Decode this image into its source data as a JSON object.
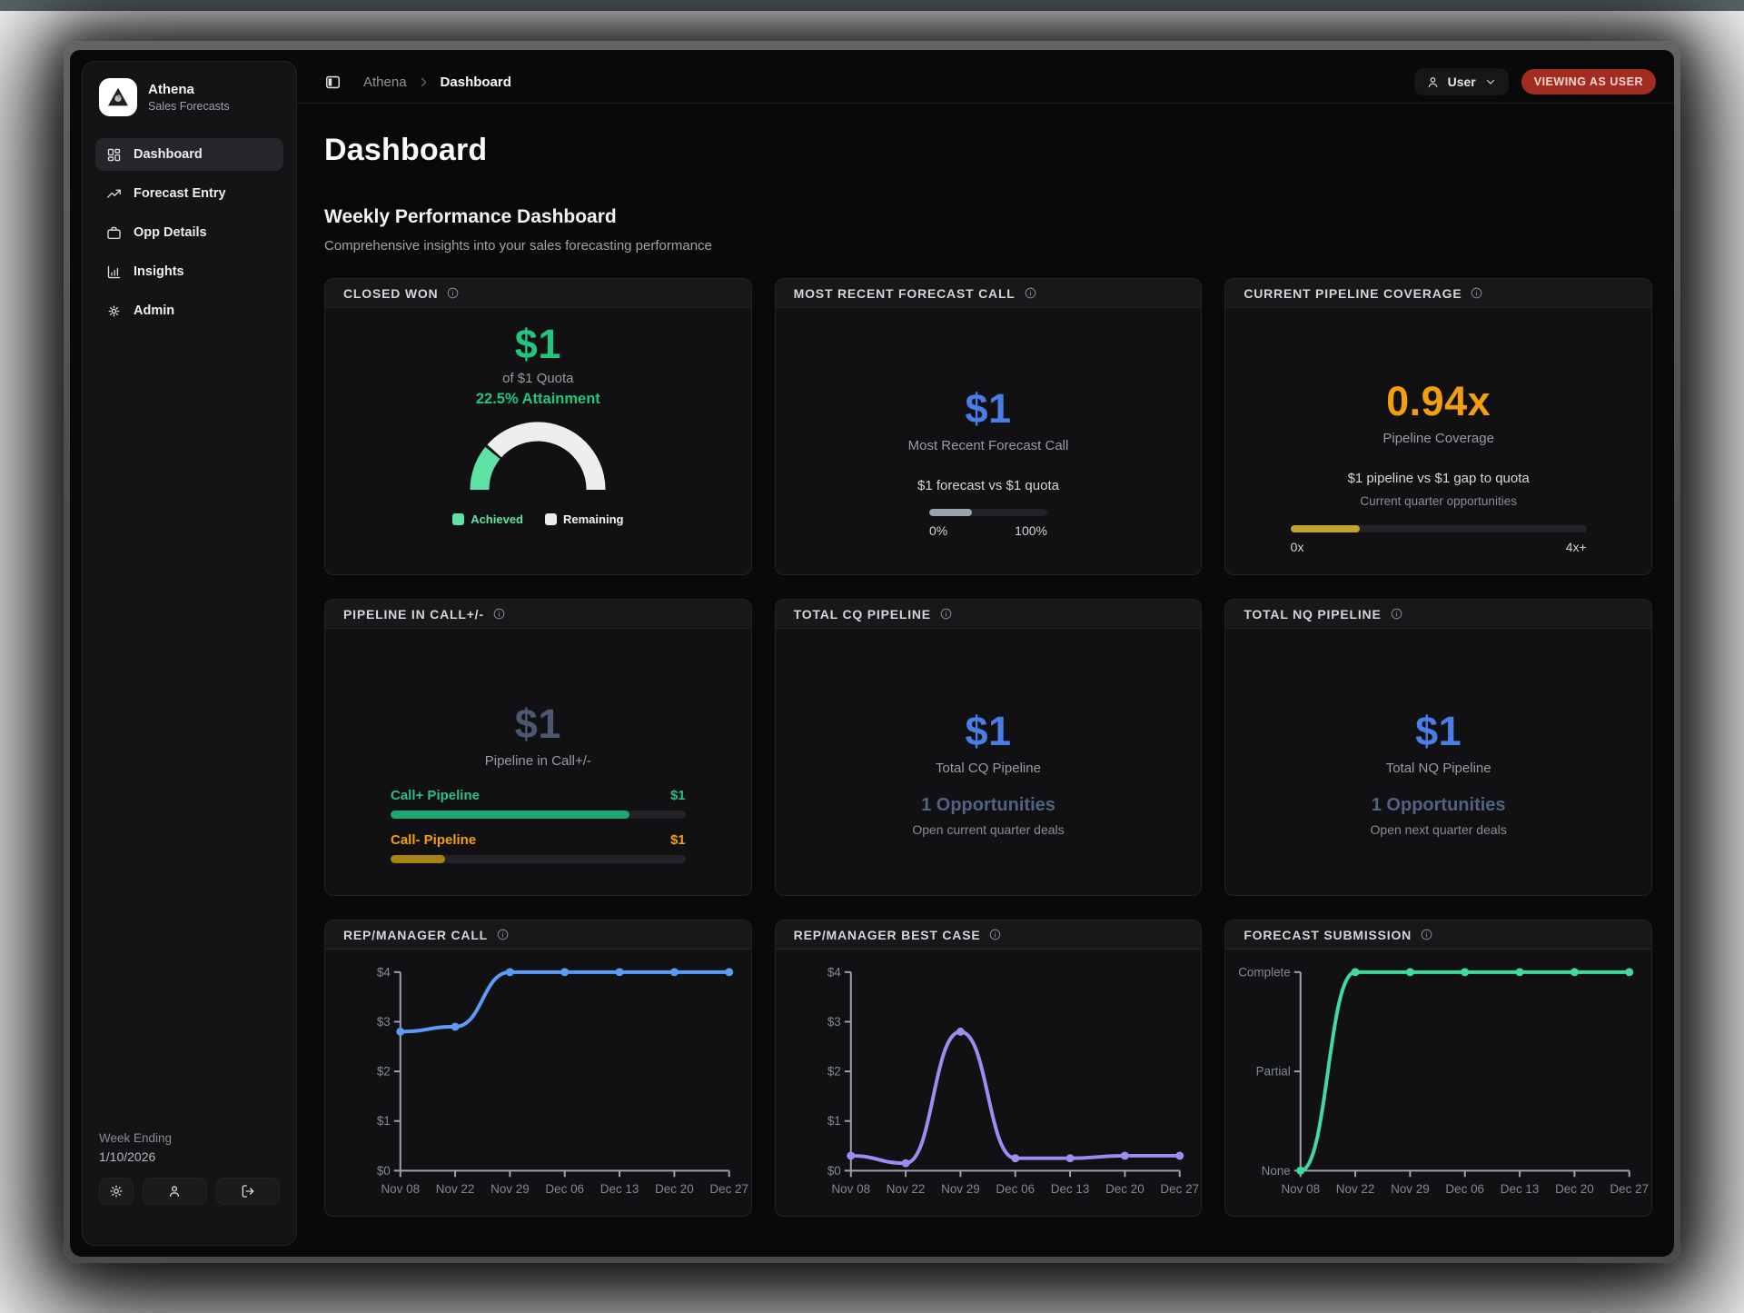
{
  "colors": {
    "green": "#22c57e",
    "mint": "#5fe3a4",
    "blue": "#4b7de6",
    "orange": "#f59e0b",
    "gold": "#c4a135",
    "gold_dark": "#a8830f",
    "teal_green": "#1ba873",
    "teal_text": "#2dbd87",
    "slate": "#4b5870",
    "slate_light": "#516283",
    "gray_fill": "#9ca3af",
    "badge_red": "#a32c20",
    "chart_blue": "#5b9cf6",
    "chart_purple": "#9d8cf2",
    "chart_mint": "#42d9a0"
  },
  "sidebar": {
    "app_name": "Athena",
    "app_subtitle": "Sales Forecasts",
    "nav": [
      {
        "label": "Dashboard",
        "icon": "dashboard-grid",
        "active": true
      },
      {
        "label": "Forecast Entry",
        "icon": "trending-up",
        "active": false
      },
      {
        "label": "Opp Details",
        "icon": "briefcase",
        "active": false
      },
      {
        "label": "Insights",
        "icon": "bar-chart",
        "active": false
      },
      {
        "label": "Admin",
        "icon": "gear",
        "active": false
      }
    ],
    "footer": {
      "week_ending_label": "Week Ending",
      "week_ending_date": "1/10/2026"
    }
  },
  "topbar": {
    "breadcrumb_app": "Athena",
    "breadcrumb_page": "Dashboard",
    "user_label": "User",
    "viewing_badge": "VIEWING AS USER"
  },
  "page": {
    "title": "Dashboard",
    "section_title": "Weekly Performance Dashboard",
    "section_subtitle": "Comprehensive insights into your sales forecasting performance"
  },
  "cards": {
    "closed_won": {
      "title": "CLOSED WON",
      "value": "$1",
      "quota_line": "of $1 Quota",
      "attainment": "22.5% Attainment",
      "legend_achieved": "Achieved",
      "legend_remaining": "Remaining"
    },
    "forecast_call": {
      "title": "MOST RECENT FORECAST CALL",
      "value": "$1",
      "label": "Most Recent Forecast Call",
      "compare": "$1 forecast vs $1 quota",
      "bar_pct": 36,
      "min_label": "0%",
      "max_label": "100%"
    },
    "coverage": {
      "title": "CURRENT PIPELINE COVERAGE",
      "value": "0.94x",
      "label": "Pipeline Coverage",
      "compare": "$1 pipeline vs $1 gap to quota",
      "note": "Current quarter opportunities",
      "bar_pct": 23.5,
      "min_label": "0x",
      "max_label": "4x+"
    },
    "call_pm": {
      "title": "PIPELINE IN CALL+/-",
      "value": "$1",
      "label": "Pipeline in Call+/-",
      "rows": [
        {
          "label": "Call+ Pipeline",
          "value": "$1",
          "pct": 81
        },
        {
          "label": "Call- Pipeline",
          "value": "$1",
          "pct": 18.5
        }
      ]
    },
    "cq": {
      "title": "TOTAL CQ PIPELINE",
      "value": "$1",
      "label": "Total CQ Pipeline",
      "opps": "1 Opportunities",
      "note": "Open current quarter deals"
    },
    "nq": {
      "title": "TOTAL NQ PIPELINE",
      "value": "$1",
      "label": "Total NQ Pipeline",
      "opps": "1 Opportunities",
      "note": "Open next quarter deals"
    },
    "rep_call": {
      "title": "REP/MANAGER CALL"
    },
    "best_case": {
      "title": "REP/MANAGER BEST CASE"
    },
    "submission": {
      "title": "FORECAST SUBMISSION"
    }
  },
  "chart_data": [
    {
      "type": "gauge",
      "title": "Closed Won Attainment",
      "achieved_pct": 22.5,
      "remaining_pct": 77.5,
      "achieved_color": "#5fe3a4",
      "remaining_color": "#eceef0",
      "legend": [
        "Achieved",
        "Remaining"
      ]
    },
    {
      "type": "line",
      "title": "REP/MANAGER CALL",
      "x": [
        "Nov 08",
        "Nov 22",
        "Nov 29",
        "Dec 06",
        "Dec 13",
        "Dec 20",
        "Dec 27"
      ],
      "values": [
        2.8,
        2.9,
        4,
        4,
        4,
        4,
        4
      ],
      "ylim": [
        0,
        4
      ],
      "yticks": [
        {
          "v": 0,
          "label": "$0"
        },
        {
          "v": 1,
          "label": "$1"
        },
        {
          "v": 2,
          "label": "$2"
        },
        {
          "v": 3,
          "label": "$3"
        },
        {
          "v": 4,
          "label": "$4"
        }
      ],
      "grid": false,
      "color": "#5b9cf6"
    },
    {
      "type": "line",
      "title": "REP/MANAGER BEST CASE",
      "x": [
        "Nov 08",
        "Nov 22",
        "Nov 29",
        "Dec 06",
        "Dec 13",
        "Dec 20",
        "Dec 27"
      ],
      "values": [
        0.3,
        0.15,
        2.8,
        0.25,
        0.25,
        0.3,
        0.3
      ],
      "ylim": [
        0,
        4
      ],
      "yticks": [
        {
          "v": 0,
          "label": "$0"
        },
        {
          "v": 1,
          "label": "$1"
        },
        {
          "v": 2,
          "label": "$2"
        },
        {
          "v": 3,
          "label": "$3"
        },
        {
          "v": 4,
          "label": "$4"
        }
      ],
      "grid": false,
      "color": "#9d8cf2"
    },
    {
      "type": "line",
      "title": "FORECAST SUBMISSION",
      "x": [
        "Nov 08",
        "Nov 22",
        "Nov 29",
        "Dec 06",
        "Dec 13",
        "Dec 20",
        "Dec 27"
      ],
      "values": [
        0,
        2,
        2,
        2,
        2,
        2,
        2
      ],
      "ylim": [
        0,
        2
      ],
      "yticks": [
        {
          "v": 0,
          "label": "None"
        },
        {
          "v": 1,
          "label": "Partial"
        },
        {
          "v": 2,
          "label": "Complete"
        }
      ],
      "grid": false,
      "color": "#42d9a0"
    }
  ]
}
